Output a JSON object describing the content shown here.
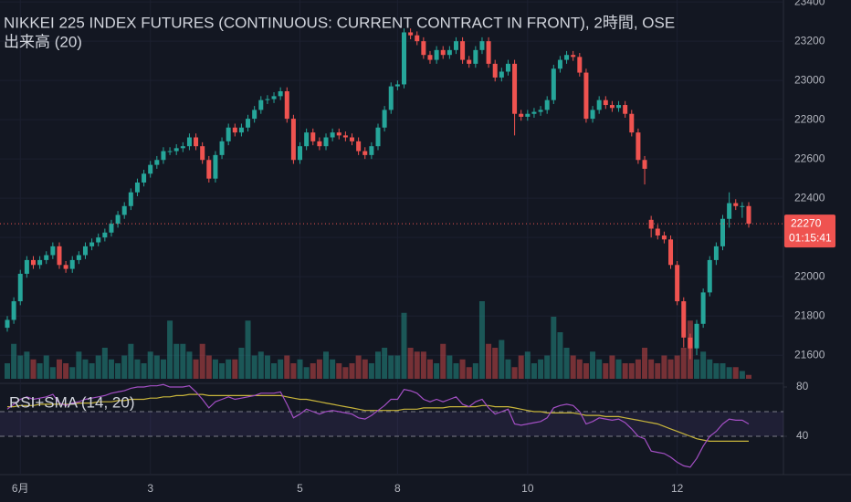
{
  "chart_data": {
    "type": "candlestick",
    "title": "NIKKEI 225 INDEX FUTURES (CONTINUOUS: CURRENT CONTRACT IN FRONT), 2時間, OSE",
    "volume_title": "出来高 (20)",
    "categories": [
      null,
      null,
      "6月",
      null,
      null,
      null,
      null,
      null,
      null,
      null,
      null,
      null,
      null,
      null,
      null,
      null,
      null,
      null,
      null,
      null,
      null,
      null,
      "3",
      null,
      null,
      null,
      null,
      null,
      null,
      null,
      null,
      null,
      null,
      null,
      null,
      null,
      null,
      null,
      null,
      null,
      null,
      null,
      null,
      null,
      null,
      "5",
      null,
      null,
      null,
      null,
      null,
      null,
      null,
      null,
      null,
      null,
      null,
      null,
      null,
      null,
      "8",
      null,
      null,
      null,
      null,
      null,
      null,
      null,
      null,
      null,
      null,
      null,
      null,
      null,
      null,
      null,
      null,
      null,
      null,
      null,
      "10",
      null,
      null,
      null,
      null,
      null,
      null,
      null,
      null,
      null,
      null,
      null,
      null,
      null,
      null,
      null,
      null,
      null,
      null,
      null,
      null,
      null,
      null,
      "12",
      null,
      null,
      null,
      null,
      null,
      null,
      null,
      null,
      null,
      null,
      null
    ],
    "open": [
      21740,
      21780,
      21875,
      22015,
      22085,
      22060,
      22085,
      22110,
      22155,
      22060,
      22040,
      22085,
      22110,
      22155,
      22175,
      22200,
      22225,
      22270,
      22315,
      22360,
      22430,
      22480,
      22525,
      22570,
      22595,
      22640,
      22640,
      22655,
      22665,
      22710,
      22665,
      22595,
      22500,
      22620,
      22690,
      22760,
      22735,
      22760,
      22805,
      22850,
      22900,
      22905,
      22920,
      22945,
      22805,
      22595,
      22665,
      22735,
      22690,
      22665,
      22710,
      22735,
      22720,
      22710,
      22690,
      22640,
      22620,
      22665,
      22760,
      22850,
      22970,
      22980,
      23245,
      23230,
      23200,
      23130,
      23105,
      23155,
      23130,
      23155,
      23200,
      23105,
      23085,
      23155,
      23200,
      23085,
      23015,
      23045,
      23085,
      22830,
      22815,
      22830,
      22840,
      22850,
      22900,
      23060,
      23105,
      23130,
      23120,
      23040,
      22805,
      22850,
      22900,
      22875,
      22860,
      22875,
      22830,
      22735,
      22595,
      22290,
      22245,
      22210,
      22190,
      22060,
      21875,
      21690,
      21635,
      21760,
      21920,
      22085,
      22155,
      22295,
      22375,
      22360,
      22360
    ],
    "high": [
      21800,
      21895,
      22035,
      22105,
      22105,
      22105,
      22130,
      22175,
      22175,
      22080,
      22105,
      22130,
      22175,
      22195,
      22220,
      22245,
      22290,
      22335,
      22380,
      22450,
      22500,
      22545,
      22590,
      22615,
      22660,
      22660,
      22675,
      22685,
      22730,
      22730,
      22685,
      22615,
      22640,
      22710,
      22780,
      22780,
      22780,
      22825,
      22870,
      22920,
      22925,
      22940,
      22965,
      22965,
      22825,
      22685,
      22755,
      22755,
      22710,
      22730,
      22755,
      22755,
      22740,
      22730,
      22710,
      22660,
      22685,
      22780,
      22870,
      22990,
      23000,
      23265,
      23265,
      23250,
      23220,
      23150,
      23175,
      23175,
      23175,
      23220,
      23220,
      23125,
      23175,
      23220,
      23220,
      23105,
      23065,
      23105,
      23105,
      22850,
      22850,
      22860,
      22870,
      22920,
      23080,
      23125,
      23150,
      23150,
      23140,
      23060,
      22870,
      22920,
      22920,
      22895,
      22895,
      22895,
      22850,
      22755,
      22615,
      22310,
      22265,
      22230,
      22210,
      22080,
      21895,
      21710,
      21780,
      21940,
      22105,
      22175,
      22315,
      22430,
      22395,
      22380,
      22380
    ],
    "low": [
      21720,
      21760,
      21855,
      21995,
      22040,
      22040,
      22065,
      22090,
      22040,
      22020,
      22020,
      22065,
      22090,
      22135,
      22155,
      22180,
      22205,
      22250,
      22295,
      22340,
      22410,
      22460,
      22505,
      22550,
      22575,
      22620,
      22620,
      22635,
      22645,
      22645,
      22575,
      22480,
      22480,
      22600,
      22670,
      22715,
      22715,
      22740,
      22785,
      22830,
      22880,
      22885,
      22900,
      22785,
      22575,
      22575,
      22645,
      22670,
      22645,
      22645,
      22690,
      22700,
      22690,
      22670,
      22620,
      22600,
      22600,
      22645,
      22740,
      22830,
      22950,
      22960,
      23210,
      23180,
      23110,
      23085,
      23085,
      23110,
      23110,
      23135,
      23085,
      23065,
      23065,
      23135,
      23065,
      22995,
      22995,
      23025,
      22720,
      22795,
      22795,
      22810,
      22820,
      22830,
      22880,
      23040,
      23085,
      23100,
      23020,
      22785,
      22785,
      22830,
      22855,
      22840,
      22840,
      22810,
      22715,
      22575,
      22470,
      22200,
      22190,
      22170,
      22040,
      21855,
      21640,
      21580,
      21600,
      21740,
      21900,
      22060,
      22135,
      22250,
      22340,
      22300,
      22250
    ],
    "close": [
      21780,
      21875,
      22015,
      22085,
      22060,
      22085,
      22110,
      22155,
      22060,
      22040,
      22085,
      22110,
      22155,
      22175,
      22200,
      22225,
      22270,
      22315,
      22360,
      22430,
      22480,
      22525,
      22570,
      22595,
      22640,
      22640,
      22655,
      22665,
      22710,
      22665,
      22595,
      22500,
      22620,
      22690,
      22760,
      22735,
      22760,
      22805,
      22850,
      22900,
      22905,
      22920,
      22945,
      22805,
      22595,
      22665,
      22735,
      22690,
      22665,
      22710,
      22735,
      22720,
      22710,
      22690,
      22640,
      22620,
      22665,
      22760,
      22850,
      22970,
      22980,
      23245,
      23230,
      23200,
      23130,
      23105,
      23155,
      23130,
      23155,
      23200,
      23105,
      23085,
      23155,
      23200,
      23085,
      23015,
      23045,
      23085,
      22830,
      22815,
      22830,
      22840,
      22850,
      22900,
      23060,
      23105,
      23130,
      23120,
      23040,
      22805,
      22850,
      22900,
      22875,
      22860,
      22875,
      22830,
      22735,
      22595,
      22550,
      22245,
      22210,
      22190,
      22060,
      21875,
      21690,
      21635,
      21760,
      21920,
      22085,
      22155,
      22295,
      22375,
      22360,
      22360,
      22270
    ],
    "volume": [
      20,
      45,
      30,
      35,
      25,
      20,
      30,
      15,
      25,
      20,
      15,
      35,
      25,
      20,
      30,
      40,
      25,
      20,
      30,
      45,
      25,
      20,
      35,
      30,
      25,
      75,
      45,
      45,
      35,
      25,
      45,
      30,
      25,
      20,
      25,
      25,
      40,
      75,
      30,
      35,
      30,
      20,
      25,
      30,
      20,
      25,
      15,
      20,
      25,
      35,
      25,
      20,
      15,
      20,
      30,
      25,
      20,
      35,
      40,
      30,
      30,
      85,
      40,
      35,
      35,
      25,
      20,
      45,
      30,
      20,
      25,
      15,
      20,
      100,
      45,
      40,
      50,
      25,
      15,
      30,
      35,
      20,
      25,
      30,
      80,
      60,
      40,
      30,
      25,
      20,
      35,
      25,
      20,
      30,
      25,
      20,
      20,
      25,
      40,
      25,
      20,
      30,
      25,
      30,
      40,
      75,
      25,
      35,
      25,
      20,
      20,
      15,
      15,
      10,
      5
    ],
    "up_color": "#26a69a",
    "down_color": "#ef5350",
    "ylim": [
      21480,
      23410
    ],
    "yticks": [
      21600,
      21800,
      22000,
      22200,
      22400,
      22600,
      22800,
      23000,
      23200,
      23400
    ],
    "countdown": "01:15:41",
    "rsi": {
      "title": "RSI+SMA (14, 20)",
      "color": "#a34fc4",
      "sma_color": "#c8b53b",
      "values": [
        62,
        66,
        70,
        72,
        70,
        71,
        72,
        74,
        67,
        65,
        67,
        68,
        70,
        71,
        72,
        73,
        75,
        76,
        77,
        79,
        80,
        80,
        81,
        81,
        82,
        80,
        80,
        80,
        81,
        76,
        70,
        63,
        68,
        70,
        72,
        70,
        71,
        72,
        73,
        75,
        75,
        75,
        76,
        66,
        55,
        58,
        62,
        60,
        58,
        60,
        61,
        60,
        59,
        58,
        55,
        54,
        57,
        61,
        65,
        70,
        70,
        78,
        77,
        75,
        70,
        68,
        70,
        68,
        70,
        72,
        66,
        64,
        68,
        70,
        63,
        58,
        60,
        62,
        50,
        49,
        50,
        51,
        52,
        55,
        63,
        65,
        66,
        65,
        60,
        50,
        52,
        55,
        54,
        53,
        54,
        51,
        46,
        40,
        38,
        28,
        27,
        26,
        23,
        19,
        16,
        15,
        22,
        32,
        40,
        44,
        50,
        54,
        53,
        53,
        50
      ],
      "sma": [
        64,
        64,
        65,
        65,
        65,
        66,
        66,
        66,
        66,
        66,
        66,
        67,
        67,
        67,
        68,
        68,
        68,
        69,
        69,
        70,
        70,
        70,
        71,
        71,
        72,
        72,
        73,
        73,
        74,
        74,
        74,
        73,
        73,
        73,
        73,
        73,
        73,
        73,
        73,
        73,
        73,
        73,
        73,
        72,
        71,
        70,
        70,
        69,
        68,
        67,
        66,
        65,
        64,
        63,
        62,
        61,
        61,
        61,
        61,
        61,
        61,
        62,
        62,
        62,
        63,
        63,
        63,
        63,
        64,
        64,
        64,
        64,
        64,
        65,
        65,
        64,
        64,
        64,
        63,
        62,
        61,
        60,
        60,
        59,
        59,
        59,
        59,
        59,
        58,
        57,
        57,
        57,
        56,
        56,
        56,
        55,
        54,
        53,
        52,
        51,
        50,
        48,
        46,
        44,
        42,
        40,
        38,
        37,
        36,
        36,
        36,
        36,
        36,
        36,
        36
      ],
      "ylim": [
        10,
        82
      ],
      "yticks": [
        40,
        80
      ],
      "bands": [
        40,
        60
      ]
    }
  }
}
